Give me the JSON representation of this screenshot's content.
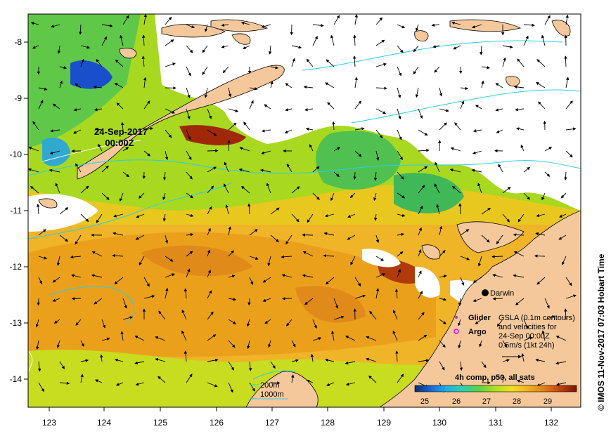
{
  "map": {
    "date_label": "24-Sep-2017",
    "time_label": "00:00Z",
    "lon_ticks": [
      "123",
      "124",
      "125",
      "126",
      "127",
      "128",
      "129",
      "130",
      "131",
      "132"
    ],
    "lat_ticks": [
      "-8",
      "-9",
      "-10",
      "-11",
      "-12",
      "-13",
      "-14"
    ],
    "places": {
      "darwin": "Darwin",
      "glider": "Glider",
      "argo": "Argo"
    },
    "legend": {
      "line1": "GSLA (0.1m contours)",
      "line2": "and velocities for",
      "line3": "24-Sep 00:00Z",
      "line4": "0.5m/s (1kt 24h)"
    },
    "contours": {
      "shallow": "200m",
      "deep": "1000m"
    },
    "colorbar": {
      "title": "4h comp, p50, all sats",
      "ticks": [
        "25",
        "26",
        "27",
        "28",
        "29"
      ],
      "colors": [
        "#08306b",
        "#1a66d9",
        "#20b0e0",
        "#30d0b0",
        "#60d040",
        "#b0e020",
        "#f0e020",
        "#f0b020",
        "#e08010",
        "#c04010",
        "#7a1500"
      ]
    },
    "credit": "© IMOS 11-Nov-2017 07:03 Hobart Time",
    "colors": {
      "land": "#f5c89b",
      "warm": "#f0a81e",
      "cloud": "#ffffff",
      "isobath": "#28d0e8",
      "glider_marker": "#d020d0",
      "argo_marker": "#ff00ff"
    }
  }
}
